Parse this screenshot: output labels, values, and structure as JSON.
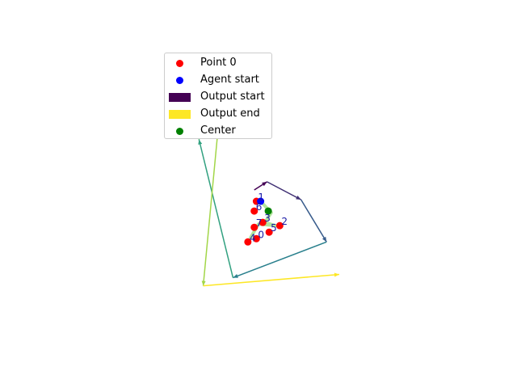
{
  "chart_data": {
    "type": "scatter",
    "title": "",
    "xlabel": "",
    "ylabel": "",
    "axes_visible": false,
    "grid": false,
    "legend_placement": "upper-left",
    "xlim": [
      -3.7,
      3.9
    ],
    "ylim": [
      -4.3,
      4.9
    ],
    "legend": [
      {
        "label": "Point 0",
        "marker": "circle",
        "color": "#ff0000"
      },
      {
        "label": "Agent start",
        "marker": "circle",
        "color": "#0000ff"
      },
      {
        "label": "Output start",
        "marker": "patch",
        "color": "#440154"
      },
      {
        "label": "Output end",
        "marker": "patch",
        "color": "#fde725"
      },
      {
        "label": "Center",
        "marker": "circle",
        "color": "#008000"
      }
    ],
    "points": [
      {
        "label": "0",
        "x": 0.05,
        "y": -0.95
      },
      {
        "label": "1",
        "x": 0.05,
        "y": 0.2
      },
      {
        "label": "2",
        "x": 0.6,
        "y": -0.55
      },
      {
        "label": "3",
        "x": 0.2,
        "y": -0.45
      },
      {
        "label": "4",
        "x": -0.15,
        "y": -1.05
      },
      {
        "label": "5",
        "x": 0.35,
        "y": -0.75
      },
      {
        "label": "6",
        "x": 0.0,
        "y": -0.1
      },
      {
        "label": "7",
        "x": 0.0,
        "y": -0.6
      }
    ],
    "agent_start": {
      "x": 0.15,
      "y": 0.2
    },
    "center": {
      "x": 0.33,
      "y": -0.1
    },
    "agent_path": [
      {
        "x": 0.15,
        "y": 0.2
      },
      {
        "x": 0.4,
        "y": -0.15
      },
      {
        "x": 0.25,
        "y": -0.45
      },
      {
        "x": 0.5,
        "y": -0.55
      },
      {
        "x": 0.1,
        "y": -0.5
      },
      {
        "x": -0.1,
        "y": -0.95
      }
    ],
    "output_path": [
      {
        "x": 0.0,
        "y": 0.55
      },
      {
        "x": 0.3,
        "y": 0.8
      },
      {
        "x": 1.1,
        "y": 0.25
      },
      {
        "x": 1.7,
        "y": -1.05
      },
      {
        "x": -0.5,
        "y": -2.15
      },
      {
        "x": -1.3,
        "y": 2.1
      },
      {
        "x": -0.7,
        "y": 4.5
      },
      {
        "x": -1.2,
        "y": -2.4
      },
      {
        "x": 2.0,
        "y": -2.05
      }
    ],
    "output_colormap": [
      "#440154",
      "#3b528b",
      "#21918c",
      "#5ec962",
      "#fde725"
    ]
  }
}
